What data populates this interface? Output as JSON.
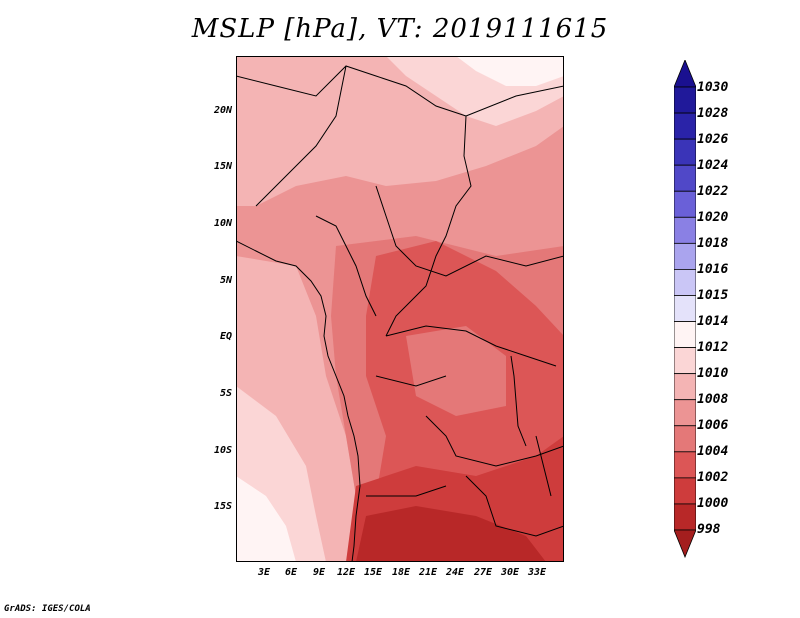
{
  "title": "MSLP [hPa], VT: 2019111615",
  "footer": "GrADS: IGES/COLA",
  "map": {
    "region": "Central Africa",
    "lon_range_deg": [
      0,
      36
    ],
    "lat_range_deg": [
      -20,
      25
    ],
    "y_axis_labels": [
      {
        "text": "20N",
        "lat": 20
      },
      {
        "text": "15N",
        "lat": 15
      },
      {
        "text": "10N",
        "lat": 10
      },
      {
        "text": "5N",
        "lat": 5
      },
      {
        "text": "EQ",
        "lat": 0
      },
      {
        "text": "5S",
        "lat": -5
      },
      {
        "text": "10S",
        "lat": -10
      },
      {
        "text": "15S",
        "lat": -15
      }
    ],
    "x_axis_labels": [
      {
        "text": "3E",
        "lon": 3
      },
      {
        "text": "6E",
        "lon": 6
      },
      {
        "text": "9E",
        "lon": 9
      },
      {
        "text": "12E",
        "lon": 12
      },
      {
        "text": "15E",
        "lon": 15
      },
      {
        "text": "18E",
        "lon": 18
      },
      {
        "text": "21E",
        "lon": 21
      },
      {
        "text": "24E",
        "lon": 24
      },
      {
        "text": "27E",
        "lon": 27
      },
      {
        "text": "30E",
        "lon": 30
      },
      {
        "text": "33E",
        "lon": 33
      }
    ]
  },
  "colorbar": {
    "labels": [
      "1030",
      "1028",
      "1026",
      "1024",
      "1022",
      "1020",
      "1018",
      "1016",
      "1015",
      "1014",
      "1012",
      "1010",
      "1008",
      "1006",
      "1004",
      "1002",
      "1000",
      "998"
    ],
    "bands": [
      {
        "level": 1028,
        "color": "#20199a"
      },
      {
        "level": 1026,
        "color": "#2a23a8"
      },
      {
        "level": 1024,
        "color": "#3a34b8"
      },
      {
        "level": 1022,
        "color": "#5048c8"
      },
      {
        "level": 1020,
        "color": "#6a60d8"
      },
      {
        "level": 1018,
        "color": "#8a80e4"
      },
      {
        "level": 1016,
        "color": "#aaa4ee"
      },
      {
        "level": 1015,
        "color": "#cac6f6"
      },
      {
        "level": 1014,
        "color": "#e4e2fa"
      },
      {
        "level": 1012,
        "color": "#fff4f4"
      },
      {
        "level": 1010,
        "color": "#fbd6d6"
      },
      {
        "level": 1008,
        "color": "#f4b4b4"
      },
      {
        "level": 1006,
        "color": "#ec9494"
      },
      {
        "level": 1004,
        "color": "#e47878"
      },
      {
        "level": 1002,
        "color": "#dc5656"
      },
      {
        "level": 1000,
        "color": "#ce3c3c"
      },
      {
        "level": 998,
        "color": "#b82828"
      }
    ],
    "top_color": "#1a1090",
    "bottom_color": "#a41e1e"
  },
  "fill_colors": {
    "p998": "#b82828",
    "p1000": "#ce3c3c",
    "p1002": "#dc5656",
    "p1004": "#e47878",
    "p1006": "#ec9494",
    "p1008": "#f4b4b4",
    "p1010": "#fbd6d6",
    "p1012": "#fff4f4"
  }
}
